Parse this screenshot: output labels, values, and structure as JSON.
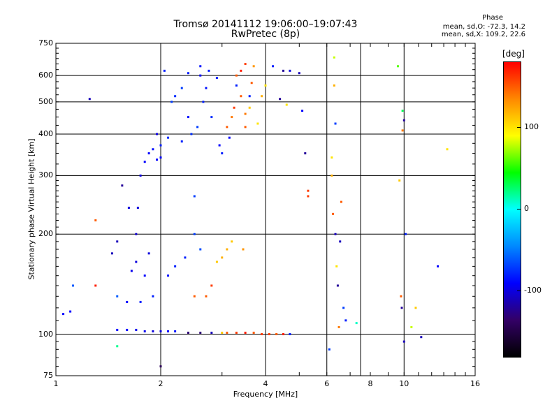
{
  "header": {
    "title_line1": "Tromsø 20141112 19:06:00–19:07:43",
    "title_line2": "RwPretec (8p)",
    "phase_title": "Phase",
    "phase_o": "mean, sd,O: -72.3, 14.2",
    "phase_x": "mean, sd,X: 109.2, 22.6"
  },
  "colorbar": {
    "label": "[deg]",
    "ticks": [
      {
        "value": 100,
        "label": "100"
      },
      {
        "value": 0,
        "label": "0"
      },
      {
        "value": -100,
        "label": "-100"
      }
    ],
    "range": [
      -180,
      180
    ],
    "stops": [
      "#ff0000",
      "#ff8800",
      "#ffff00",
      "#00ff00",
      "#00ffff",
      "#0088ff",
      "#0000ff",
      "#330066",
      "#000000"
    ]
  },
  "chart_data": {
    "type": "scatter",
    "title": "Tromsø 20141112 19:06:00–19:07:43",
    "subtitle": "RwPretec (8p)",
    "xlabel": "Frequency [MHz]",
    "ylabel": "Stationary phase Virtual Height [km]",
    "x_scale": "log",
    "y_scale": "log",
    "xlim": [
      1,
      16
    ],
    "ylim": [
      75,
      750
    ],
    "x_ticks": [
      1,
      2,
      4,
      6,
      8,
      10,
      16
    ],
    "x_tick_labels": [
      "1",
      "2",
      "4",
      "6",
      "8",
      "10",
      "16"
    ],
    "y_ticks": [
      75,
      100,
      200,
      300,
      400,
      500,
      600,
      750
    ],
    "y_tick_labels": [
      "75",
      "100",
      "200",
      "300",
      "400",
      "500",
      "600",
      "750"
    ],
    "grid_x": [
      2,
      4,
      6,
      7.5,
      10
    ],
    "grid_y": [
      100,
      200,
      300,
      400,
      500,
      600
    ],
    "color_by": "phase [deg]",
    "points": [
      {
        "f": 1.05,
        "h": 115,
        "p": -90
      },
      {
        "f": 1.1,
        "h": 117,
        "p": -90
      },
      {
        "f": 1.12,
        "h": 140,
        "p": -60
      },
      {
        "f": 1.25,
        "h": 510,
        "p": -110
      },
      {
        "f": 1.3,
        "h": 140,
        "p": 170
      },
      {
        "f": 1.3,
        "h": 220,
        "p": 150
      },
      {
        "f": 1.45,
        "h": 175,
        "p": -110
      },
      {
        "f": 1.5,
        "h": 130,
        "p": -60
      },
      {
        "f": 1.5,
        "h": 190,
        "p": -110
      },
      {
        "f": 1.55,
        "h": 280,
        "p": -120
      },
      {
        "f": 1.62,
        "h": 240,
        "p": -100
      },
      {
        "f": 1.6,
        "h": 125,
        "p": -90
      },
      {
        "f": 1.65,
        "h": 155,
        "p": -95
      },
      {
        "f": 1.7,
        "h": 165,
        "p": -100
      },
      {
        "f": 1.7,
        "h": 200,
        "p": -105
      },
      {
        "f": 1.72,
        "h": 240,
        "p": -100
      },
      {
        "f": 1.75,
        "h": 300,
        "p": -100
      },
      {
        "f": 1.75,
        "h": 125,
        "p": -80
      },
      {
        "f": 1.8,
        "h": 150,
        "p": -90
      },
      {
        "f": 1.8,
        "h": 330,
        "p": -90
      },
      {
        "f": 1.85,
        "h": 350,
        "p": -90
      },
      {
        "f": 1.85,
        "h": 175,
        "p": -100
      },
      {
        "f": 1.9,
        "h": 360,
        "p": -85
      },
      {
        "f": 1.9,
        "h": 130,
        "p": -80
      },
      {
        "f": 1.95,
        "h": 335,
        "p": -90
      },
      {
        "f": 1.95,
        "h": 400,
        "p": -100
      },
      {
        "f": 2.0,
        "h": 370,
        "p": -80
      },
      {
        "f": 2.0,
        "h": 340,
        "p": -90
      },
      {
        "f": 2.05,
        "h": 620,
        "p": -80
      },
      {
        "f": 2.1,
        "h": 390,
        "p": -75
      },
      {
        "f": 2.1,
        "h": 150,
        "p": -85
      },
      {
        "f": 2.15,
        "h": 500,
        "p": -70
      },
      {
        "f": 2.2,
        "h": 520,
        "p": -75
      },
      {
        "f": 2.2,
        "h": 160,
        "p": -80
      },
      {
        "f": 2.3,
        "h": 380,
        "p": -80
      },
      {
        "f": 2.3,
        "h": 550,
        "p": -70
      },
      {
        "f": 2.35,
        "h": 170,
        "p": -80
      },
      {
        "f": 2.4,
        "h": 450,
        "p": -85
      },
      {
        "f": 2.4,
        "h": 610,
        "p": -80
      },
      {
        "f": 2.45,
        "h": 400,
        "p": -75
      },
      {
        "f": 2.5,
        "h": 200,
        "p": -70
      },
      {
        "f": 2.5,
        "h": 260,
        "p": -70
      },
      {
        "f": 2.5,
        "h": 130,
        "p": 150
      },
      {
        "f": 2.55,
        "h": 420,
        "p": -70
      },
      {
        "f": 2.6,
        "h": 600,
        "p": -90
      },
      {
        "f": 2.6,
        "h": 640,
        "p": -85
      },
      {
        "f": 2.6,
        "h": 180,
        "p": -65
      },
      {
        "f": 2.65,
        "h": 500,
        "p": -80
      },
      {
        "f": 2.7,
        "h": 550,
        "p": -85
      },
      {
        "f": 2.7,
        "h": 130,
        "p": 150
      },
      {
        "f": 2.75,
        "h": 620,
        "p": -80
      },
      {
        "f": 2.8,
        "h": 450,
        "p": -75
      },
      {
        "f": 2.8,
        "h": 140,
        "p": 160
      },
      {
        "f": 2.9,
        "h": 590,
        "p": -80
      },
      {
        "f": 2.9,
        "h": 165,
        "p": 110
      },
      {
        "f": 2.95,
        "h": 370,
        "p": -90
      },
      {
        "f": 3.0,
        "h": 350,
        "p": -80
      },
      {
        "f": 3.0,
        "h": 170,
        "p": 120
      },
      {
        "f": 3.1,
        "h": 420,
        "p": 150
      },
      {
        "f": 3.1,
        "h": 180,
        "p": 120
      },
      {
        "f": 3.15,
        "h": 390,
        "p": -90
      },
      {
        "f": 3.2,
        "h": 450,
        "p": 140
      },
      {
        "f": 3.2,
        "h": 190,
        "p": 110
      },
      {
        "f": 3.25,
        "h": 480,
        "p": 160
      },
      {
        "f": 3.3,
        "h": 560,
        "p": -80
      },
      {
        "f": 3.3,
        "h": 600,
        "p": 150
      },
      {
        "f": 3.4,
        "h": 520,
        "p": 150
      },
      {
        "f": 3.4,
        "h": 620,
        "p": 170
      },
      {
        "f": 3.45,
        "h": 180,
        "p": 130
      },
      {
        "f": 3.5,
        "h": 420,
        "p": 150
      },
      {
        "f": 3.5,
        "h": 650,
        "p": 160
      },
      {
        "f": 3.5,
        "h": 460,
        "p": 140
      },
      {
        "f": 3.6,
        "h": 480,
        "p": 110
      },
      {
        "f": 3.6,
        "h": 520,
        "p": -80
      },
      {
        "f": 3.65,
        "h": 570,
        "p": 150
      },
      {
        "f": 3.7,
        "h": 640,
        "p": 130
      },
      {
        "f": 3.8,
        "h": 430,
        "p": 100
      },
      {
        "f": 3.9,
        "h": 520,
        "p": 120
      },
      {
        "f": 4.0,
        "h": 560,
        "p": 100
      },
      {
        "f": 4.2,
        "h": 640,
        "p": -80
      },
      {
        "f": 4.4,
        "h": 510,
        "p": -120
      },
      {
        "f": 4.5,
        "h": 620,
        "p": -120
      },
      {
        "f": 4.6,
        "h": 490,
        "p": 100
      },
      {
        "f": 4.7,
        "h": 620,
        "p": -100
      },
      {
        "f": 5.0,
        "h": 610,
        "p": -110
      },
      {
        "f": 5.1,
        "h": 470,
        "p": -90
      },
      {
        "f": 5.2,
        "h": 350,
        "p": -120
      },
      {
        "f": 5.3,
        "h": 270,
        "p": 160
      },
      {
        "f": 5.3,
        "h": 260,
        "p": 160
      },
      {
        "f": 6.1,
        "h": 90,
        "p": -70
      },
      {
        "f": 6.2,
        "h": 340,
        "p": 100
      },
      {
        "f": 6.2,
        "h": 300,
        "p": 120
      },
      {
        "f": 6.25,
        "h": 230,
        "p": 150
      },
      {
        "f": 6.3,
        "h": 680,
        "p": 80
      },
      {
        "f": 6.3,
        "h": 560,
        "p": 120
      },
      {
        "f": 6.35,
        "h": 430,
        "p": -70
      },
      {
        "f": 6.35,
        "h": 200,
        "p": -110
      },
      {
        "f": 6.4,
        "h": 160,
        "p": 100
      },
      {
        "f": 6.45,
        "h": 140,
        "p": -120
      },
      {
        "f": 6.5,
        "h": 105,
        "p": 140
      },
      {
        "f": 6.55,
        "h": 190,
        "p": -110
      },
      {
        "f": 6.6,
        "h": 250,
        "p": 150
      },
      {
        "f": 6.7,
        "h": 120,
        "p": -70
      },
      {
        "f": 6.8,
        "h": 110,
        "p": -80
      },
      {
        "f": 7.3,
        "h": 108,
        "p": 10
      },
      {
        "f": 9.6,
        "h": 640,
        "p": 60
      },
      {
        "f": 9.7,
        "h": 290,
        "p": 110
      },
      {
        "f": 9.8,
        "h": 130,
        "p": 150
      },
      {
        "f": 9.85,
        "h": 120,
        "p": -120
      },
      {
        "f": 9.9,
        "h": 470,
        "p": 30
      },
      {
        "f": 9.9,
        "h": 410,
        "p": 140
      },
      {
        "f": 10.0,
        "h": 440,
        "p": -120
      },
      {
        "f": 10.0,
        "h": 95,
        "p": -110
      },
      {
        "f": 10.1,
        "h": 200,
        "p": -80
      },
      {
        "f": 10.5,
        "h": 105,
        "p": 80
      },
      {
        "f": 10.8,
        "h": 120,
        "p": 110
      },
      {
        "f": 11.2,
        "h": 98,
        "p": -110
      },
      {
        "f": 12.5,
        "h": 160,
        "p": -90
      },
      {
        "f": 13.3,
        "h": 360,
        "p": 100
      },
      {
        "f": 1.5,
        "h": 103,
        "p": -90
      },
      {
        "f": 1.6,
        "h": 103,
        "p": -90
      },
      {
        "f": 1.7,
        "h": 103,
        "p": -95
      },
      {
        "f": 1.8,
        "h": 102,
        "p": -95
      },
      {
        "f": 1.9,
        "h": 102,
        "p": -100
      },
      {
        "f": 2.0,
        "h": 102,
        "p": -100
      },
      {
        "f": 2.1,
        "h": 102,
        "p": -90
      },
      {
        "f": 2.2,
        "h": 102,
        "p": -85
      },
      {
        "f": 2.4,
        "h": 101,
        "p": -130
      },
      {
        "f": 2.6,
        "h": 101,
        "p": -130
      },
      {
        "f": 2.8,
        "h": 101,
        "p": -110
      },
      {
        "f": 3.0,
        "h": 101,
        "p": 110
      },
      {
        "f": 3.1,
        "h": 101,
        "p": 150
      },
      {
        "f": 3.3,
        "h": 101,
        "p": 160
      },
      {
        "f": 3.5,
        "h": 101,
        "p": 170
      },
      {
        "f": 3.7,
        "h": 101,
        "p": 150
      },
      {
        "f": 3.9,
        "h": 100,
        "p": 160
      },
      {
        "f": 4.1,
        "h": 100,
        "p": 160
      },
      {
        "f": 4.3,
        "h": 100,
        "p": 150
      },
      {
        "f": 4.5,
        "h": 100,
        "p": 170
      },
      {
        "f": 4.7,
        "h": 100,
        "p": -80
      },
      {
        "f": 1.5,
        "h": 92,
        "p": 20
      },
      {
        "f": 2.0,
        "h": 80,
        "p": -140
      }
    ]
  }
}
